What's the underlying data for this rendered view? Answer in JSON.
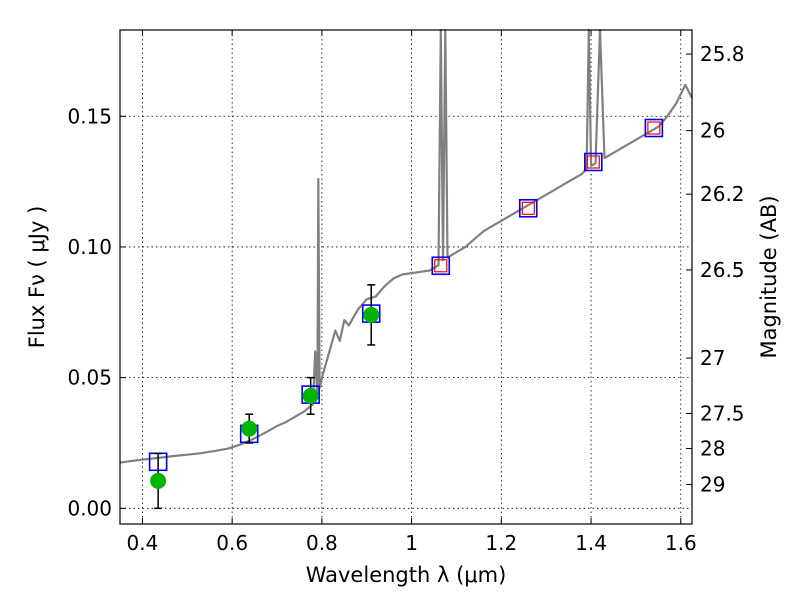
{
  "chart_data": {
    "type": "scatter",
    "xlabel": "Wavelength  λ (μm)",
    "ylabel": "Flux  Fν  ( μJy )",
    "right_ylabel": "Magnitude (AB)",
    "xlim": [
      0.35,
      1.625
    ],
    "ylim": [
      -0.006,
      0.183
    ],
    "grid": true,
    "x_ticks": [
      {
        "value": 0.4,
        "label": "0.4"
      },
      {
        "value": 0.6,
        "label": "0.6"
      },
      {
        "value": 0.8,
        "label": "0.8"
      },
      {
        "value": 1.0,
        "label": "1"
      },
      {
        "value": 1.2,
        "label": "1.2"
      },
      {
        "value": 1.4,
        "label": "1.4"
      },
      {
        "value": 1.6,
        "label": "1.6"
      }
    ],
    "y_ticks": [
      {
        "value": 0.0,
        "label": "0.00"
      },
      {
        "value": 0.05,
        "label": "0.05"
      },
      {
        "value": 0.1,
        "label": "0.10"
      },
      {
        "value": 0.15,
        "label": "0.15"
      }
    ],
    "right_ticks": [
      {
        "flux": 0.1738,
        "label": "25.8"
      },
      {
        "flux": 0.1445,
        "label": "26"
      },
      {
        "flux": 0.1202,
        "label": "26.2"
      },
      {
        "flux": 0.0912,
        "label": "26.5"
      },
      {
        "flux": 0.0575,
        "label": "27"
      },
      {
        "flux": 0.0363,
        "label": "27.5"
      },
      {
        "flux": 0.0229,
        "label": "28"
      },
      {
        "flux": 0.0091,
        "label": "29"
      }
    ],
    "series": [
      {
        "style": "line",
        "color": "#808080",
        "points": [
          [
            0.35,
            0.0175
          ],
          [
            0.37,
            0.018
          ],
          [
            0.39,
            0.0184
          ],
          [
            0.41,
            0.0188
          ],
          [
            0.43,
            0.0192
          ],
          [
            0.45,
            0.0196
          ],
          [
            0.47,
            0.02
          ],
          [
            0.5,
            0.0205
          ],
          [
            0.53,
            0.0211
          ],
          [
            0.56,
            0.0219
          ],
          [
            0.59,
            0.0228
          ],
          [
            0.62,
            0.0245
          ],
          [
            0.65,
            0.0268
          ],
          [
            0.68,
            0.0295
          ],
          [
            0.7,
            0.0315
          ],
          [
            0.72,
            0.033
          ],
          [
            0.74,
            0.035
          ],
          [
            0.76,
            0.037
          ],
          [
            0.78,
            0.0398
          ],
          [
            0.785,
            0.06
          ],
          [
            0.79,
            0.042
          ],
          [
            0.792,
            0.126
          ],
          [
            0.795,
            0.046
          ],
          [
            0.8,
            0.05
          ],
          [
            0.82,
            0.062
          ],
          [
            0.83,
            0.068
          ],
          [
            0.84,
            0.064
          ],
          [
            0.85,
            0.072
          ],
          [
            0.86,
            0.07
          ],
          [
            0.88,
            0.076
          ],
          [
            0.9,
            0.08
          ],
          [
            0.92,
            0.081
          ],
          [
            0.94,
            0.085
          ],
          [
            0.96,
            0.088
          ],
          [
            0.98,
            0.0895
          ],
          [
            1.0,
            0.09
          ],
          [
            1.02,
            0.0905
          ],
          [
            1.04,
            0.091
          ],
          [
            1.06,
            0.093
          ],
          [
            1.065,
            0.183
          ],
          [
            1.07,
            0.095
          ],
          [
            1.075,
            0.183
          ],
          [
            1.08,
            0.096
          ],
          [
            1.1,
            0.098
          ],
          [
            1.12,
            0.1
          ],
          [
            1.14,
            0.103
          ],
          [
            1.16,
            0.106
          ],
          [
            1.18,
            0.108
          ],
          [
            1.2,
            0.11
          ],
          [
            1.22,
            0.112
          ],
          [
            1.24,
            0.114
          ],
          [
            1.26,
            0.116
          ],
          [
            1.28,
            0.118
          ],
          [
            1.3,
            0.12
          ],
          [
            1.32,
            0.122
          ],
          [
            1.34,
            0.124
          ],
          [
            1.36,
            0.126
          ],
          [
            1.38,
            0.128
          ],
          [
            1.39,
            0.13
          ],
          [
            1.395,
            0.183
          ],
          [
            1.4,
            0.131
          ],
          [
            1.41,
            0.132
          ],
          [
            1.42,
            0.183
          ],
          [
            1.43,
            0.134
          ],
          [
            1.45,
            0.136
          ],
          [
            1.47,
            0.138
          ],
          [
            1.49,
            0.14
          ],
          [
            1.51,
            0.142
          ],
          [
            1.53,
            0.144
          ],
          [
            1.55,
            0.146
          ],
          [
            1.57,
            0.15
          ],
          [
            1.59,
            0.155
          ],
          [
            1.61,
            0.162
          ],
          [
            1.625,
            0.157
          ]
        ]
      },
      {
        "style": "open-square",
        "color": "#0000ff",
        "points": [
          [
            0.435,
            0.0178
          ],
          [
            0.638,
            0.0285
          ],
          [
            0.775,
            0.0435
          ],
          [
            0.91,
            0.0745
          ],
          [
            1.065,
            0.0928
          ],
          [
            1.26,
            0.1148
          ],
          [
            1.405,
            0.1325
          ],
          [
            1.54,
            0.1455
          ]
        ]
      },
      {
        "style": "open-square",
        "color": "#ff0000",
        "points": [
          [
            1.065,
            0.0928
          ],
          [
            1.26,
            0.1148
          ],
          [
            1.405,
            0.1325
          ],
          [
            1.54,
            0.1455
          ]
        ]
      },
      {
        "style": "filled-circle",
        "color": "#00b400",
        "points": [
          [
            0.435,
            0.0105
          ],
          [
            0.638,
            0.0305
          ],
          [
            0.775,
            0.043
          ],
          [
            0.91,
            0.074
          ]
        ],
        "error": [
          0.0105,
          0.0055,
          0.007,
          0.0115
        ]
      }
    ]
  }
}
